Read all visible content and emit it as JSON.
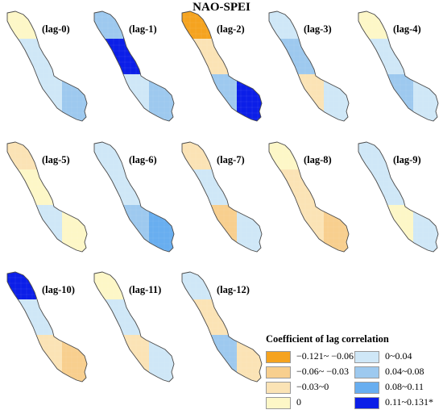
{
  "title": "NAO-SPEI",
  "palette": {
    "n121": "#f5a31f",
    "n06": "#f8cf8e",
    "n03": "#fbe3b5",
    "zero": "#fdf7c7",
    "p04": "#cfe7f7",
    "p08": "#9dc9ef",
    "p11": "#68aef0",
    "sig": "#0b1ee8"
  },
  "panels": [
    {
      "label": "(lag-0)",
      "top": "zero",
      "upper": "p04",
      "lower": "p04",
      "east": "p08"
    },
    {
      "label": "(lag-1)",
      "top": "p08",
      "upper": "sig",
      "lower": "p04",
      "east": "p08"
    },
    {
      "label": "(lag-2)",
      "top": "n121",
      "upper": "n03",
      "lower": "p08",
      "east": "sig"
    },
    {
      "label": "(lag-3)",
      "top": "p04",
      "upper": "p08",
      "lower": "n03",
      "east": "p04"
    },
    {
      "label": "(lag-4)",
      "top": "zero",
      "upper": "p04",
      "lower": "p08",
      "east": "p04"
    },
    {
      "label": "(lag-5)",
      "top": "n03",
      "upper": "zero",
      "lower": "p04",
      "east": "zero"
    },
    {
      "label": "(lag-6)",
      "top": "p04",
      "upper": "p04",
      "lower": "p08",
      "east": "p11"
    },
    {
      "label": "(lag-7)",
      "top": "n03",
      "upper": "p04",
      "lower": "n06",
      "east": "p04"
    },
    {
      "label": "(lag-8)",
      "top": "zero",
      "upper": "n03",
      "lower": "n03",
      "east": "n06"
    },
    {
      "label": "(lag-9)",
      "top": "p04",
      "upper": "p04",
      "lower": "zero",
      "east": "p04"
    },
    {
      "label": "(lag-10)",
      "top": "sig",
      "upper": "p04",
      "lower": "n03",
      "east": "n06"
    },
    {
      "label": "(lag-11)",
      "top": "zero",
      "upper": "p04",
      "lower": "n03",
      "east": "p04"
    },
    {
      "label": "(lag-12)",
      "top": "p04",
      "upper": "n03",
      "lower": "p08",
      "east": "n03"
    }
  ],
  "legend": {
    "title": "Coefficient of lag correlation",
    "items": [
      {
        "label": "−0.121~ −0.06",
        "color": "n121"
      },
      {
        "label": "0~0.04",
        "color": "p04"
      },
      {
        "label": "−0.06~ −0.03",
        "color": "n06"
      },
      {
        "label": "0.04~0.08",
        "color": "p08"
      },
      {
        "label": "−0.03~0",
        "color": "n03"
      },
      {
        "label": "0.08~0.11",
        "color": "p11"
      },
      {
        "label": "0",
        "color": "zero"
      },
      {
        "label": "0.11~0.131*",
        "color": "sig"
      }
    ]
  }
}
